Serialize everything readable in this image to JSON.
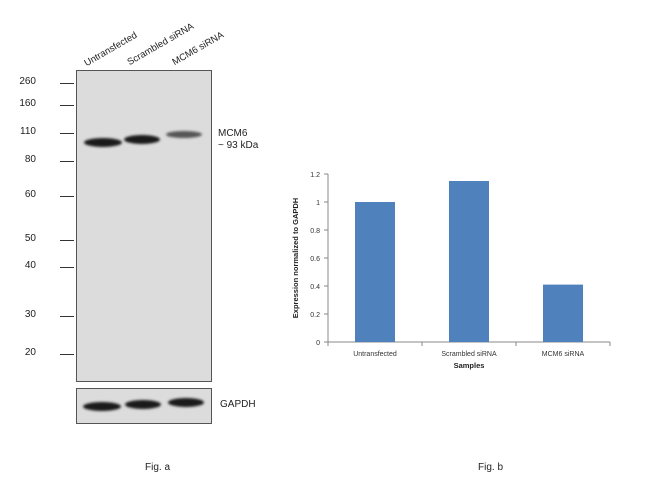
{
  "western_blot": {
    "lane_labels": [
      "Untransfected",
      "Scrambled siRNA",
      "MCM6 siRNA"
    ],
    "mw_markers": [
      "260",
      "160",
      "110",
      "80",
      "60",
      "50",
      "40",
      "30",
      "20"
    ],
    "target_label_line1": "MCM6",
    "target_label_line2": "~ 93 kDa",
    "loading_control_label": "GAPDH",
    "caption": "Fig. a"
  },
  "bar_chart_caption": "Fig. b",
  "chart_data": {
    "type": "bar",
    "categories": [
      "Untransfected",
      "Scrambled siRNA",
      "MCM6 siRNA"
    ],
    "values": [
      1.0,
      1.15,
      0.41
    ],
    "xlabel": "Samples",
    "ylabel": "Expression normalized to GAPDH",
    "ylim": [
      0,
      1.2
    ],
    "yticks": [
      "0",
      "0.2",
      "0.4",
      "0.6",
      "0.8",
      "1",
      "1.2"
    ],
    "bar_color": "#4f81bd",
    "grid": false
  }
}
